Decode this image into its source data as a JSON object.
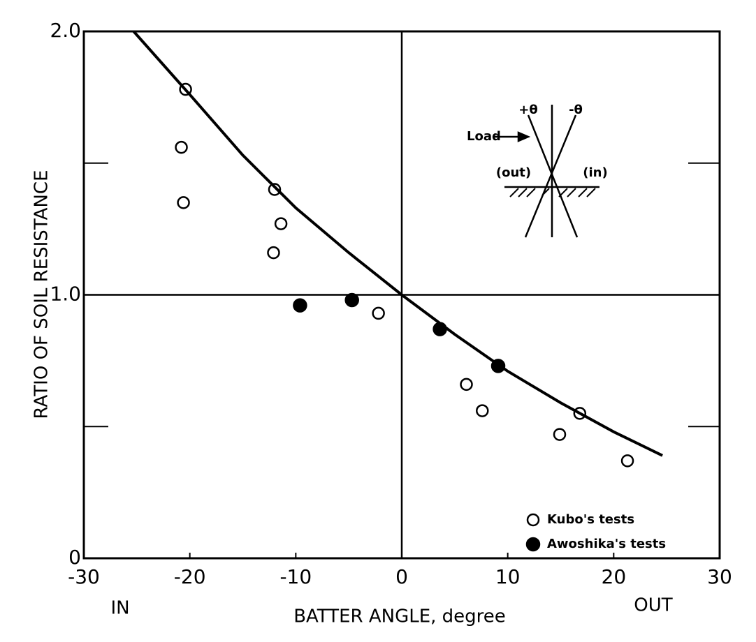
{
  "chart_data": {
    "type": "scatter",
    "x_label": "BATTER ANGLE, degree",
    "y_label": "RATIO OF SOIL RESISTANCE",
    "annotations": {
      "left": "IN",
      "right": "OUT"
    },
    "xlim": [
      -30,
      30
    ],
    "ylim": [
      0,
      2
    ],
    "xticks": [
      -30,
      -20,
      -10,
      0,
      10,
      20,
      30
    ],
    "yticks": [
      0,
      {
        "value": 1,
        "label": "1.0"
      },
      {
        "value": 2,
        "label": "2.0"
      }
    ],
    "yminorticks": [
      0.5,
      1.5
    ],
    "reference_lines": {
      "x": 0,
      "y": 1
    },
    "series": [
      {
        "name": "Kubo's tests",
        "marker": "open",
        "color": "#000000",
        "x": [
          -20.4,
          -20.8,
          -20.6,
          -12.0,
          -11.4,
          -12.1,
          -2.2,
          6.1,
          7.6,
          14.9,
          16.8,
          21.3
        ],
        "values": [
          1.78,
          1.56,
          1.35,
          1.4,
          1.27,
          1.16,
          0.93,
          0.66,
          0.56,
          0.47,
          0.55,
          0.37
        ]
      },
      {
        "name": "Awoshika's tests",
        "marker": "filled",
        "color": "#000000",
        "x": [
          -9.6,
          -4.7,
          3.6,
          9.1
        ],
        "values": [
          0.96,
          0.98,
          0.87,
          0.73
        ]
      },
      {
        "marker": "line",
        "color": "#000000",
        "x": [
          -25.3,
          -20,
          -15,
          -10,
          -5,
          0,
          5,
          10,
          15,
          20,
          24.6
        ],
        "values": [
          2.0,
          1.76,
          1.53,
          1.33,
          1.16,
          1.0,
          0.85,
          0.71,
          0.59,
          0.48,
          0.39
        ]
      }
    ],
    "legend_position": "lower right",
    "inset": {
      "load": "Load",
      "plus_theta": "+θ",
      "minus_theta": "-θ",
      "out": "(out)",
      "in": "(in)"
    }
  }
}
